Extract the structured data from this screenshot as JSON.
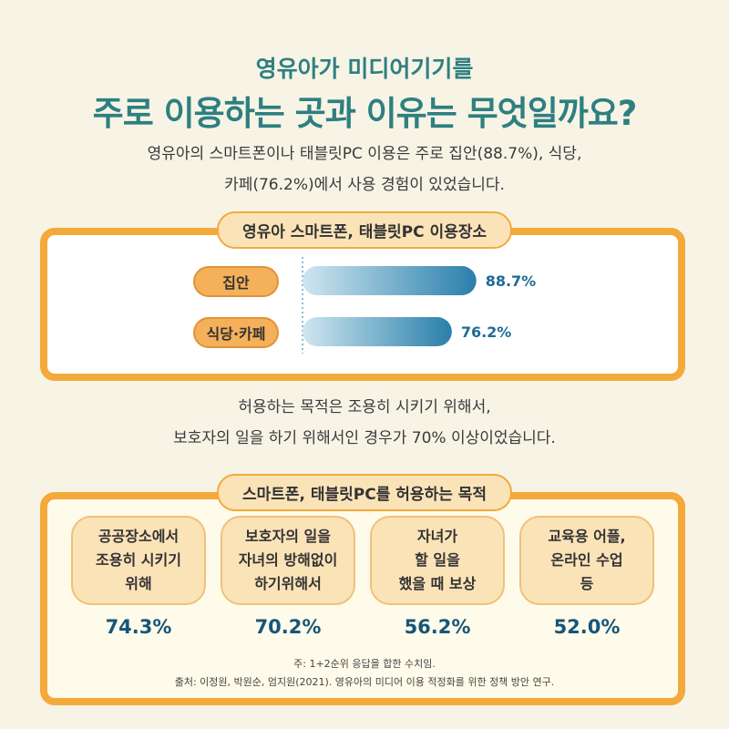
{
  "header": {
    "subtitle": "영유아가 미디어기기를",
    "title": "주로 이용하는 곳과 이유는 무엇일까요?",
    "desc_line1": "영유아의 스마트폰이나 태블릿PC 이용은 주로 집안(88.7%), 식당,",
    "desc_line2": "카페(76.2%)에서 사용 경험이 있었습니다."
  },
  "section2_desc": {
    "line1": "허용하는 목적은 조용히 시키기 위해서,",
    "line2": "보호자의 일을 하기 위해서인 경우가 70% 이상이었습니다."
  },
  "notes": {
    "line1": "주: 1+2순위 응답을 합한 수치임.",
    "line2": "출처: 이정원, 박원순, 엄지원(2021). 영유아의 미디어 이용 적정화를 위한 정책 방안 연구."
  },
  "chart_data": [
    {
      "type": "bar",
      "title": "영유아 스마트폰, 태블릿PC 이용장소",
      "categories": [
        "집안",
        "식당·카페"
      ],
      "values": [
        88.7,
        76.2
      ],
      "value_labels": [
        "88.7%",
        "76.2%"
      ],
      "orientation": "horizontal",
      "xlim": [
        0,
        100
      ],
      "colors": {
        "bar_start": "#cfe6f0",
        "bar_end": "#2a7fab",
        "label": "#1d6b96"
      }
    },
    {
      "type": "table",
      "title": "스마트폰, 태블릿PC를 허용하는 목적",
      "categories": [
        "공공장소에서\n조용히 시키기\n위해",
        "보호자의 일을\n자녀의 방해없이\n하기위해서",
        "자녀가\n할 일을\n했을 때 보상",
        "교육용 어플,\n온라인 수업\n등"
      ],
      "values": [
        74.3,
        70.2,
        56.2,
        52.0
      ],
      "value_labels": [
        "74.3%",
        "70.2%",
        "56.2%",
        "52.0%"
      ]
    }
  ]
}
